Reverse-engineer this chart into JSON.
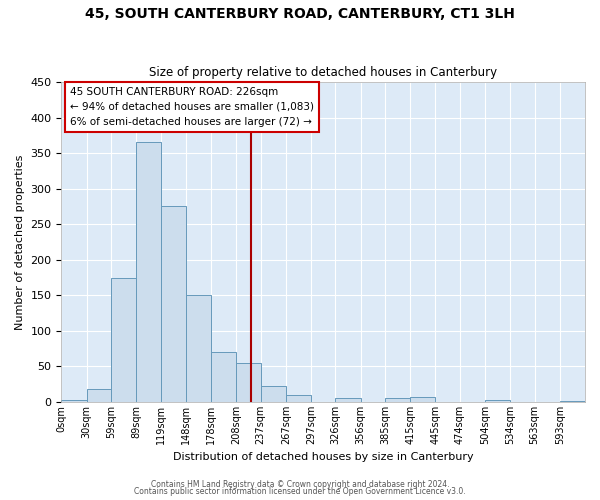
{
  "title": "45, SOUTH CANTERBURY ROAD, CANTERBURY, CT1 3LH",
  "subtitle": "Size of property relative to detached houses in Canterbury",
  "xlabel": "Distribution of detached houses by size in Canterbury",
  "ylabel": "Number of detached properties",
  "bar_color": "#ccdded",
  "bar_edge_color": "#6699bb",
  "background_color": "#ddeaf7",
  "grid_color": "#ffffff",
  "vline_x": 226,
  "vline_color": "#aa0000",
  "annotation_title": "45 SOUTH CANTERBURY ROAD: 226sqm",
  "annotation_line1": "← 94% of detached houses are smaller (1,083)",
  "annotation_line2": "6% of semi-detached houses are larger (72) →",
  "annotation_box_color": "#cc0000",
  "bin_edges": [
    0,
    30,
    59,
    89,
    119,
    148,
    178,
    208,
    237,
    267,
    297,
    326,
    356,
    385,
    415,
    445,
    474,
    504,
    534,
    563,
    593,
    623
  ],
  "bin_labels": [
    "0sqm",
    "30sqm",
    "59sqm",
    "89sqm",
    "119sqm",
    "148sqm",
    "178sqm",
    "208sqm",
    "237sqm",
    "267sqm",
    "297sqm",
    "326sqm",
    "356sqm",
    "385sqm",
    "415sqm",
    "445sqm",
    "474sqm",
    "504sqm",
    "534sqm",
    "563sqm",
    "593sqm"
  ],
  "counts": [
    3,
    18,
    175,
    365,
    275,
    150,
    70,
    55,
    22,
    10,
    0,
    6,
    0,
    6,
    7,
    0,
    0,
    3,
    0,
    0,
    2
  ],
  "ylim": [
    0,
    450
  ],
  "yticks": [
    0,
    50,
    100,
    150,
    200,
    250,
    300,
    350,
    400,
    450
  ],
  "footer_line1": "Contains HM Land Registry data © Crown copyright and database right 2024.",
  "footer_line2": "Contains public sector information licensed under the Open Government Licence v3.0."
}
